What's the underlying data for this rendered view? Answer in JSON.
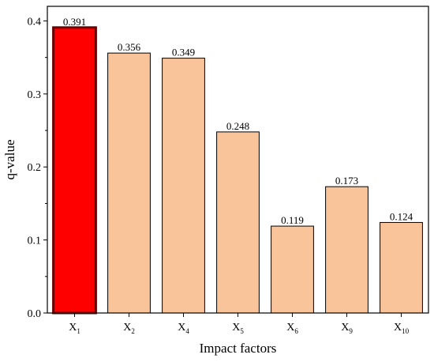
{
  "chart_data": {
    "type": "bar",
    "categories": [
      {
        "base": "X",
        "sub": "1"
      },
      {
        "base": "X",
        "sub": "2"
      },
      {
        "base": "X",
        "sub": "4"
      },
      {
        "base": "X",
        "sub": "5"
      },
      {
        "base": "X",
        "sub": "6"
      },
      {
        "base": "X",
        "sub": "9"
      },
      {
        "base": "X",
        "sub": "10"
      }
    ],
    "values": [
      0.391,
      0.356,
      0.349,
      0.248,
      0.119,
      0.173,
      0.124
    ],
    "value_labels": [
      "0.391",
      "0.356",
      "0.349",
      "0.248",
      "0.119",
      "0.173",
      "0.124"
    ],
    "xlabel": "Impact factors",
    "ylabel": "q-value",
    "ylim": [
      0,
      0.42
    ],
    "yticks": [
      0.0,
      0.1,
      0.2,
      0.3,
      0.4
    ],
    "ytick_labels": [
      "0.0",
      "0.1",
      "0.2",
      "0.3",
      "0.4"
    ],
    "grid": false,
    "legend": false,
    "colors": {
      "highlight": "#ff0000",
      "highlight_edge": "#6b0000",
      "bar": "#f9c49a",
      "bar_edge": "#000000",
      "axis": "#000000"
    },
    "highlight_index": 0
  }
}
